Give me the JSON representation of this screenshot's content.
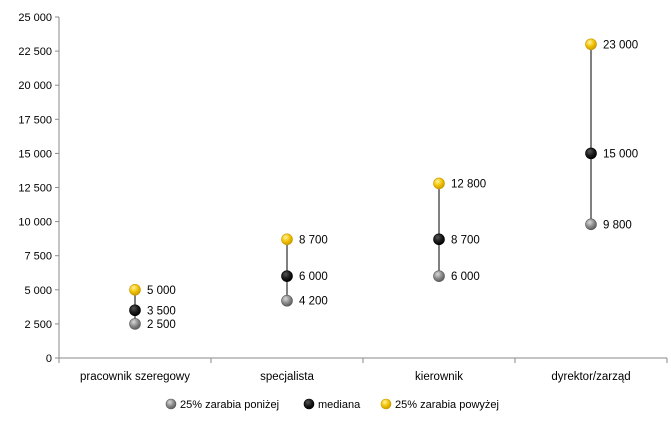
{
  "chart_data": {
    "type": "scatter",
    "categories": [
      "pracownik szeregowy",
      "specjalista",
      "kierownik",
      "dyrektor/zarząd"
    ],
    "series": [
      {
        "name": "25% zarabia poniżej",
        "values": [
          2500,
          4200,
          6000,
          9800
        ],
        "labels": [
          "2 500",
          "4 200",
          "6 000",
          "9 800"
        ],
        "color": "#8c8c8c",
        "color_light": "#d9d9d9",
        "color_dark": "#5a5a5a"
      },
      {
        "name": "mediana",
        "values": [
          3500,
          6000,
          8700,
          15000
        ],
        "labels": [
          "3 500",
          "6 000",
          "8 700",
          "15 000"
        ],
        "color": "#1a1a1a",
        "color_light": "#555555",
        "color_dark": "#000000"
      },
      {
        "name": "25% zarabia powyżej",
        "values": [
          5000,
          8700,
          12800,
          23000
        ],
        "labels": [
          "5 000",
          "8 700",
          "12 800",
          "23 000"
        ],
        "color": "#f2c200",
        "color_light": "#fff3a0",
        "color_dark": "#c99a00"
      }
    ],
    "ylim": [
      0,
      25000
    ],
    "yticks": [
      0,
      2500,
      5000,
      7500,
      10000,
      12500,
      15000,
      17500,
      20000,
      22500,
      25000
    ],
    "ytick_labels": [
      "0",
      "2 500",
      "5 000",
      "7 500",
      "10 000",
      "12 500",
      "15 000",
      "17 500",
      "20 000",
      "22 500",
      "25 000"
    ],
    "title": "",
    "xlabel": "",
    "ylabel": "",
    "grid": false,
    "legend_position": "bottom",
    "high_low_lines": true
  }
}
